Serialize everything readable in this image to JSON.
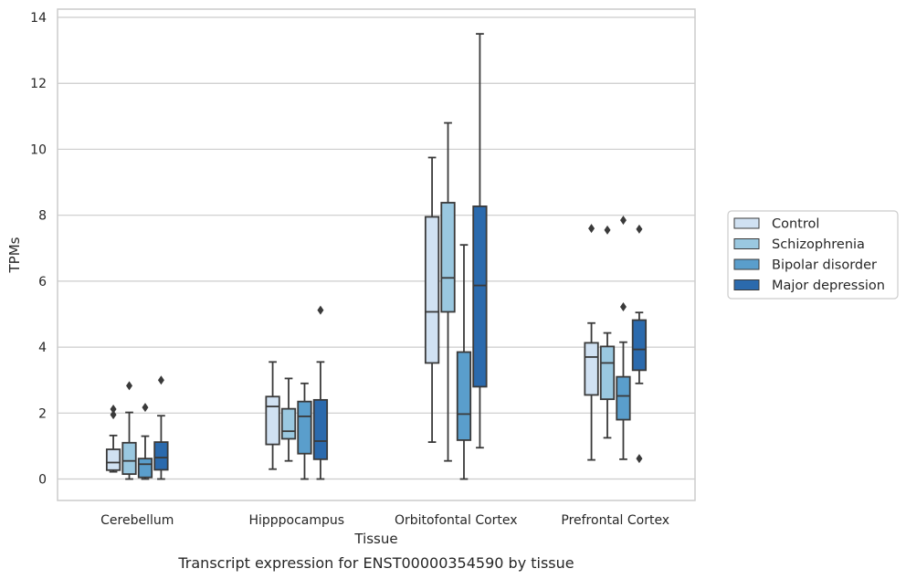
{
  "chart_data": {
    "type": "box",
    "title": "",
    "xlabel": "Tissue",
    "ylabel": "TPMs",
    "caption": "Transcript expression for ENST00000354590 by tissue",
    "ylim": [
      -0.65,
      14.25
    ],
    "yticks": [
      0,
      2,
      4,
      6,
      8,
      10,
      12,
      14
    ],
    "grid": true,
    "legend_position": "right",
    "categories": [
      "Cerebellum",
      "Hipppocampus",
      "Orbitofontal Cortex",
      "Prefrontal Cortex"
    ],
    "series": [
      {
        "name": "Control",
        "color": "#d0e1f2",
        "boxes": [
          {
            "whislo": 0.22,
            "q1": 0.27,
            "med": 0.5,
            "q3": 0.9,
            "whishi": 1.32,
            "fliers": [
              1.95,
              2.12
            ]
          },
          {
            "whislo": 0.3,
            "q1": 1.05,
            "med": 2.2,
            "q3": 2.5,
            "whishi": 3.55,
            "fliers": []
          },
          {
            "whislo": 1.12,
            "q1": 3.52,
            "med": 5.07,
            "q3": 7.95,
            "whishi": 9.75,
            "fliers": []
          },
          {
            "whislo": 0.58,
            "q1": 2.55,
            "med": 3.7,
            "q3": 4.13,
            "whishi": 4.73,
            "fliers": [
              7.6
            ]
          }
        ]
      },
      {
        "name": "Schizophrenia",
        "color": "#9ac8e0",
        "boxes": [
          {
            "whislo": 0.0,
            "q1": 0.15,
            "med": 0.55,
            "q3": 1.1,
            "whishi": 2.02,
            "fliers": [
              2.83
            ]
          },
          {
            "whislo": 0.55,
            "q1": 1.22,
            "med": 1.45,
            "q3": 2.13,
            "whishi": 3.05,
            "fliers": []
          },
          {
            "whislo": 0.55,
            "q1": 5.07,
            "med": 6.1,
            "q3": 8.38,
            "whishi": 10.8,
            "fliers": []
          },
          {
            "whislo": 1.25,
            "q1": 2.42,
            "med": 3.52,
            "q3": 4.02,
            "whishi": 4.43,
            "fliers": [
              7.55
            ]
          }
        ]
      },
      {
        "name": "Bipolar disorder",
        "color": "#5a9ecc",
        "boxes": [
          {
            "whislo": 0.0,
            "q1": 0.05,
            "med": 0.45,
            "q3": 0.62,
            "whishi": 1.3,
            "fliers": [
              2.17
            ]
          },
          {
            "whislo": 0.0,
            "q1": 0.77,
            "med": 1.9,
            "q3": 2.35,
            "whishi": 2.9,
            "fliers": []
          },
          {
            "whislo": 0.0,
            "q1": 1.18,
            "med": 1.97,
            "q3": 3.85,
            "whishi": 7.1,
            "fliers": []
          },
          {
            "whislo": 0.6,
            "q1": 1.8,
            "med": 2.52,
            "q3": 3.1,
            "whishi": 4.15,
            "fliers": [
              5.22,
              7.85
            ]
          }
        ]
      },
      {
        "name": "Major depression",
        "color": "#2b6aad",
        "boxes": [
          {
            "whislo": 0.0,
            "q1": 0.28,
            "med": 0.65,
            "q3": 1.12,
            "whishi": 1.92,
            "fliers": [
              3.0
            ]
          },
          {
            "whislo": 0.0,
            "q1": 0.6,
            "med": 1.15,
            "q3": 2.4,
            "whishi": 3.55,
            "fliers": [
              5.12
            ]
          },
          {
            "whislo": 0.95,
            "q1": 2.8,
            "med": 5.87,
            "q3": 8.27,
            "whishi": 13.5,
            "fliers": []
          },
          {
            "whislo": 2.9,
            "q1": 3.3,
            "med": 3.93,
            "q3": 4.82,
            "whishi": 5.05,
            "fliers": [
              0.62,
              7.58
            ]
          }
        ]
      }
    ]
  }
}
